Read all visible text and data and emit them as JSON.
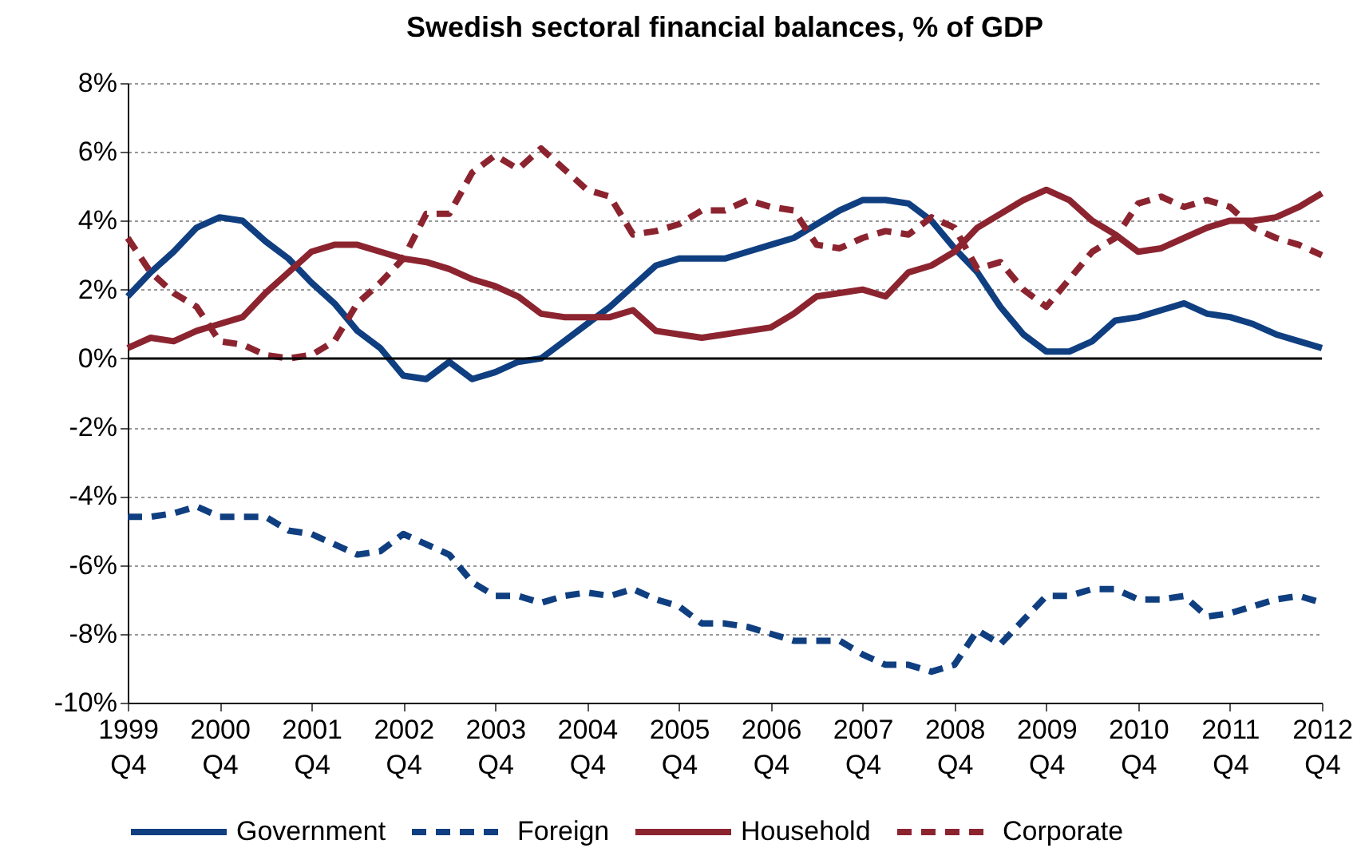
{
  "chart_data": {
    "type": "line",
    "title": "Swedish sectoral financial balances, % of GDP",
    "categories": [
      "1999\nQ4",
      null,
      null,
      null,
      "2000\nQ4",
      null,
      null,
      null,
      "2001\nQ4",
      null,
      null,
      null,
      "2002\nQ4",
      null,
      null,
      null,
      "2003\nQ4",
      null,
      null,
      null,
      "2004\nQ4",
      null,
      null,
      null,
      "2005\nQ4",
      null,
      null,
      null,
      "2006\nQ4",
      null,
      null,
      null,
      "2007\nQ4",
      null,
      null,
      null,
      "2008\nQ4",
      null,
      null,
      null,
      "2009\nQ4",
      null,
      null,
      null,
      "2010\nQ4",
      null,
      null,
      null,
      "2011\nQ4",
      null,
      null,
      null,
      "2012\nQ4"
    ],
    "series": [
      {
        "name": "Government",
        "color": "#0f3f80",
        "line_style": "solid",
        "values": [
          1.8,
          2.5,
          3.1,
          3.8,
          4.1,
          4.0,
          3.4,
          2.9,
          2.2,
          1.6,
          0.8,
          0.3,
          -0.5,
          -0.6,
          -0.1,
          -0.6,
          -0.4,
          -0.1,
          0.0,
          0.5,
          1.0,
          1.5,
          2.1,
          2.7,
          2.9,
          2.9,
          2.9,
          3.1,
          3.3,
          3.5,
          3.9,
          4.3,
          4.6,
          4.6,
          4.5,
          4.0,
          3.2,
          2.5,
          1.5,
          0.7,
          0.2,
          0.2,
          0.5,
          1.1,
          1.2,
          1.4,
          1.6,
          1.3,
          1.2,
          1.0,
          0.7,
          0.5,
          0.3
        ]
      },
      {
        "name": "Foreign",
        "color": "#0f3f80",
        "line_style": "dashed",
        "values": [
          -4.6,
          -4.6,
          -4.5,
          -4.3,
          -4.6,
          -4.6,
          -4.6,
          -5.0,
          -5.1,
          -5.4,
          -5.7,
          -5.6,
          -5.1,
          -5.4,
          -5.7,
          -6.5,
          -6.9,
          -6.9,
          -7.1,
          -6.9,
          -6.8,
          -6.9,
          -6.7,
          -7.0,
          -7.2,
          -7.7,
          -7.7,
          -7.8,
          -8.0,
          -8.2,
          -8.2,
          -8.2,
          -8.6,
          -8.9,
          -8.9,
          -9.1,
          -8.9,
          -7.9,
          -8.3,
          -7.6,
          -6.9,
          -6.9,
          -6.7,
          -6.7,
          -7.0,
          -7.0,
          -6.9,
          -7.5,
          -7.4,
          -7.2,
          -7.0,
          -6.9,
          -7.1
        ]
      },
      {
        "name": "Household",
        "color": "#8c2430",
        "line_style": "solid",
        "values": [
          0.3,
          0.6,
          0.5,
          0.8,
          1.0,
          1.2,
          1.9,
          2.5,
          3.1,
          3.3,
          3.3,
          3.1,
          2.9,
          2.8,
          2.6,
          2.3,
          2.1,
          1.8,
          1.3,
          1.2,
          1.2,
          1.2,
          1.4,
          0.8,
          0.7,
          0.6,
          0.7,
          0.8,
          0.9,
          1.3,
          1.8,
          1.9,
          2.0,
          1.8,
          2.5,
          2.7,
          3.1,
          3.8,
          4.2,
          4.6,
          4.9,
          4.6,
          4.0,
          3.6,
          3.1,
          3.2,
          3.5,
          3.8,
          4.0,
          4.0,
          4.1,
          4.4,
          4.8
        ]
      },
      {
        "name": "Corporate",
        "color": "#8c2430",
        "line_style": "dashed",
        "values": [
          3.5,
          2.5,
          1.9,
          1.5,
          0.5,
          0.4,
          0.1,
          0.0,
          0.1,
          0.5,
          1.6,
          2.2,
          2.9,
          4.2,
          4.2,
          5.4,
          5.9,
          5.5,
          6.1,
          5.5,
          4.9,
          4.7,
          3.6,
          3.7,
          3.9,
          4.3,
          4.3,
          4.6,
          4.4,
          4.3,
          3.3,
          3.2,
          3.5,
          3.7,
          3.6,
          4.1,
          3.8,
          2.6,
          2.8,
          2.0,
          1.5,
          2.3,
          3.1,
          3.5,
          4.5,
          4.7,
          4.4,
          4.6,
          4.4,
          3.8,
          3.5,
          3.3,
          3.0
        ]
      }
    ],
    "ylim": [
      -10,
      8
    ],
    "yticks": [
      {
        "value": -10,
        "label": "-10%"
      },
      {
        "value": -8,
        "label": "-8%"
      },
      {
        "value": -6,
        "label": "-6%"
      },
      {
        "value": -4,
        "label": "-4%"
      },
      {
        "value": -2,
        "label": "-2%"
      },
      {
        "value": 0,
        "label": "0%"
      },
      {
        "value": 2,
        "label": "2%"
      },
      {
        "value": 4,
        "label": "4%"
      },
      {
        "value": 6,
        "label": "6%"
      },
      {
        "value": 8,
        "label": "8%"
      }
    ],
    "ref_lines": [
      {
        "axis": "y",
        "value": 0,
        "color": "#000000"
      }
    ],
    "grid": "y",
    "legend": "bottom"
  }
}
